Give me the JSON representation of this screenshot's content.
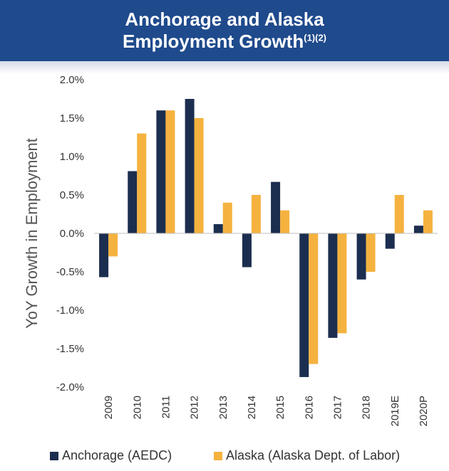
{
  "header": {
    "title_line1": "Anchorage and Alaska",
    "title_line2": "Employment Growth",
    "title_note": "(1)(2)"
  },
  "colors": {
    "header_bg": "#1f4a8c",
    "anchorage": "#1c2e4f",
    "alaska": "#f5b23f"
  },
  "chart_data": {
    "type": "bar",
    "title": "Anchorage and Alaska Employment Growth",
    "ylabel": "YoY Growth in Employment",
    "xlabel": "",
    "ylim": [
      -2.0,
      2.0
    ],
    "yticks": [
      "2.0%",
      "1.5%",
      "1.0%",
      "0.5%",
      "0.0%",
      "-0.5%",
      "-1.0%",
      "-1.5%",
      "-2.0%"
    ],
    "categories": [
      "2009",
      "2010",
      "2011",
      "2012",
      "2013",
      "2014",
      "2015",
      "2016",
      "2017",
      "2018",
      "2019E",
      "2020P"
    ],
    "series": [
      {
        "name": "Anchorage (AEDC)",
        "values": [
          -0.57,
          0.81,
          1.6,
          1.75,
          0.12,
          -0.44,
          0.67,
          -1.87,
          -1.36,
          -0.6,
          -0.2,
          0.1
        ]
      },
      {
        "name": "Alaska (Alaska Dept. of Labor)",
        "values": [
          -0.3,
          1.3,
          1.6,
          1.5,
          0.4,
          0.5,
          0.3,
          -1.7,
          -1.3,
          -0.5,
          0.5,
          0.3
        ]
      }
    ],
    "grid": false,
    "legend_position": "bottom"
  }
}
